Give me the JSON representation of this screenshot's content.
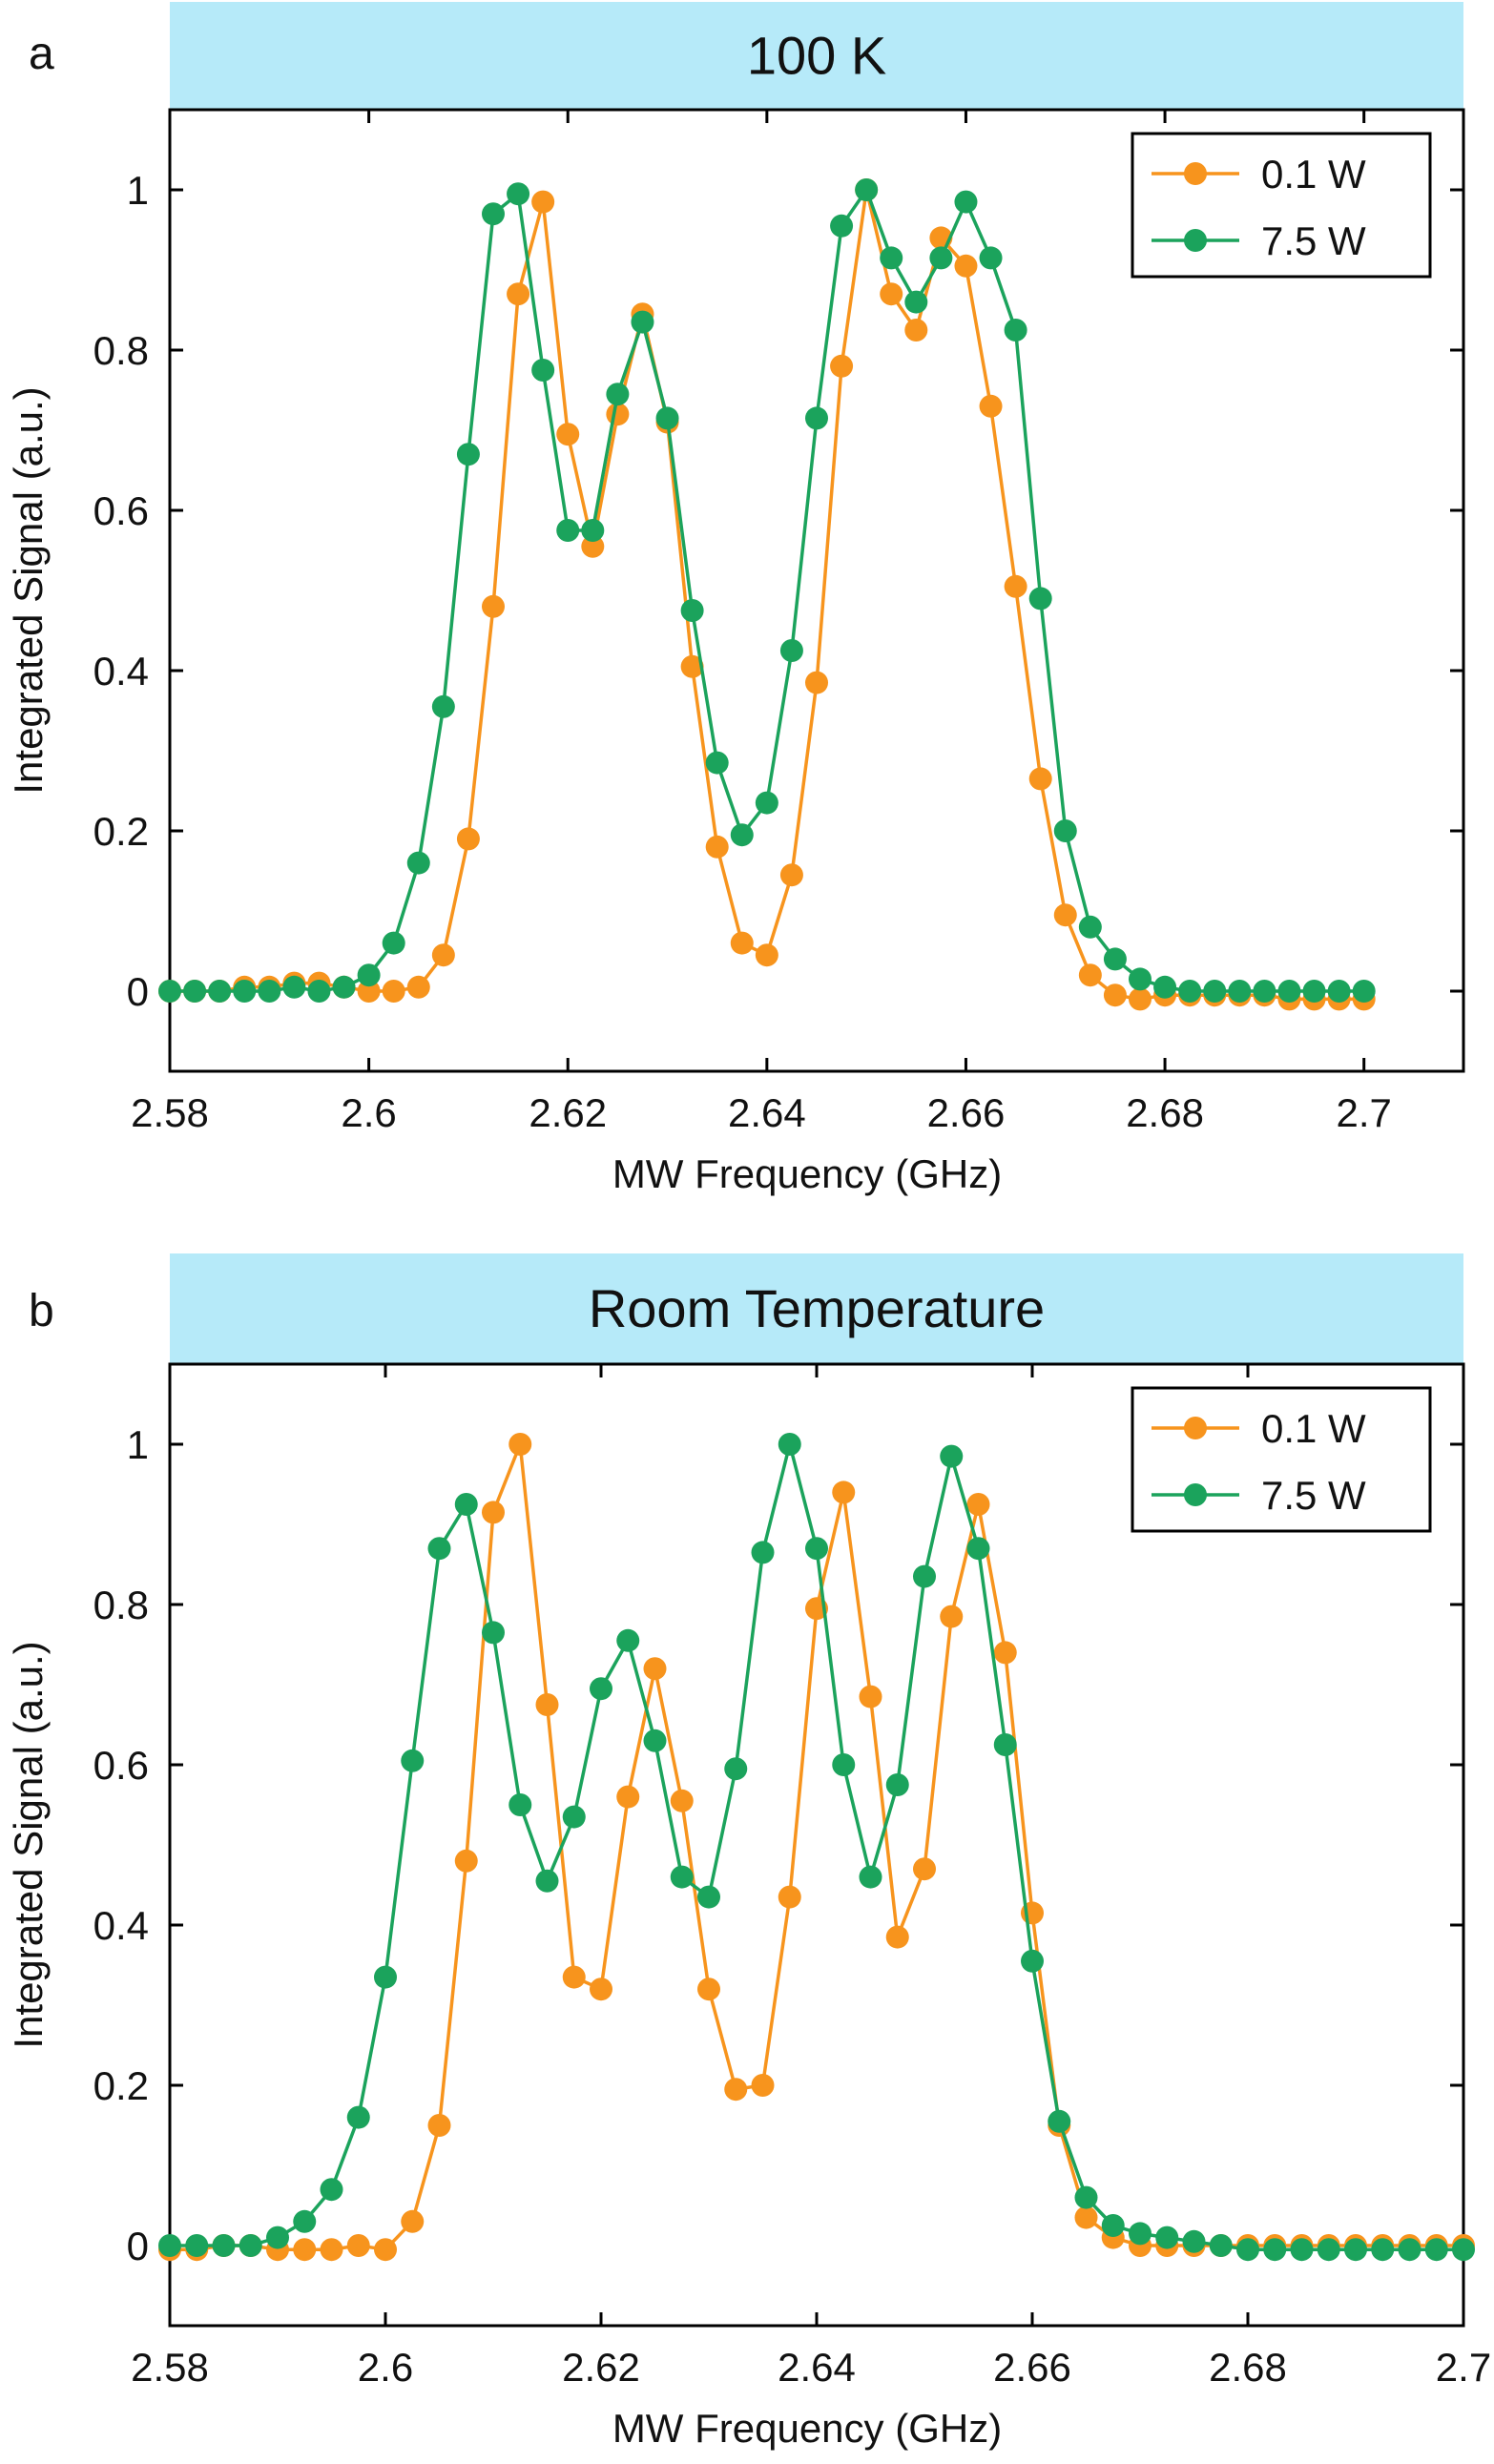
{
  "chart_data": [
    {
      "type": "line",
      "panel_label": "a",
      "title": "100 K",
      "xlabel": "MW Frequency (GHz)",
      "ylabel": "Integrated Signal (a.u.)",
      "xlim": [
        2.58,
        2.71
      ],
      "ylim": [
        -0.1,
        1.1
      ],
      "xticks": [
        2.58,
        2.6,
        2.62,
        2.64,
        2.66,
        2.68,
        2.7
      ],
      "xtick_labels": [
        "2.58",
        "2.6",
        "2.62",
        "2.64",
        "2.66",
        "2.68",
        "2.7"
      ],
      "yticks": [
        0,
        0.2,
        0.4,
        0.6,
        0.8,
        1
      ],
      "ytick_labels": [
        "0",
        "0.2",
        "0.4",
        "0.6",
        "0.8",
        "1"
      ],
      "grid": false,
      "legend_position": "top-right",
      "series": [
        {
          "name": "0.1 W",
          "color": "#F7941D",
          "x": [
            2.58,
            2.5825,
            2.585,
            2.5875,
            2.59,
            2.5925,
            2.595,
            2.5975,
            2.6,
            2.6025,
            2.605,
            2.6075,
            2.61,
            2.6125,
            2.615,
            2.6175,
            2.62,
            2.6225,
            2.625,
            2.6275,
            2.63,
            2.6325,
            2.635,
            2.6375,
            2.64,
            2.6425,
            2.645,
            2.6475,
            2.65,
            2.6525,
            2.655,
            2.6575,
            2.66,
            2.6625,
            2.665,
            2.6675,
            2.67,
            2.6725,
            2.675,
            2.6775,
            2.68,
            2.6825,
            2.685,
            2.6875,
            2.69,
            2.6925,
            2.695,
            2.6975,
            2.7
          ],
          "y": [
            0,
            0,
            0,
            0.005,
            0.005,
            0.01,
            0.01,
            0.005,
            0,
            0,
            0.005,
            0.045,
            0.19,
            0.48,
            0.87,
            0.985,
            0.695,
            0.555,
            0.72,
            0.845,
            0.71,
            0.405,
            0.18,
            0.06,
            0.045,
            0.145,
            0.385,
            0.78,
            1.0,
            0.87,
            0.825,
            0.94,
            0.905,
            0.73,
            0.505,
            0.265,
            0.095,
            0.02,
            -0.005,
            -0.01,
            -0.005,
            -0.005,
            -0.005,
            -0.005,
            -0.005,
            -0.01,
            -0.01,
            -0.01,
            -0.01
          ]
        },
        {
          "name": "7.5 W",
          "color": "#1BA35C",
          "x": [
            2.58,
            2.5825,
            2.585,
            2.5875,
            2.59,
            2.5925,
            2.595,
            2.5975,
            2.6,
            2.6025,
            2.605,
            2.6075,
            2.61,
            2.6125,
            2.615,
            2.6175,
            2.62,
            2.6225,
            2.625,
            2.6275,
            2.63,
            2.6325,
            2.635,
            2.6375,
            2.64,
            2.6425,
            2.645,
            2.6475,
            2.65,
            2.6525,
            2.655,
            2.6575,
            2.66,
            2.6625,
            2.665,
            2.6675,
            2.67,
            2.6725,
            2.675,
            2.6775,
            2.68,
            2.6825,
            2.685,
            2.6875,
            2.69,
            2.6925,
            2.695,
            2.6975,
            2.7
          ],
          "y": [
            0,
            0,
            0,
            0,
            0,
            0.005,
            0,
            0.005,
            0.02,
            0.06,
            0.16,
            0.355,
            0.67,
            0.97,
            0.995,
            0.775,
            0.575,
            0.575,
            0.745,
            0.835,
            0.715,
            0.475,
            0.285,
            0.195,
            0.235,
            0.425,
            0.715,
            0.955,
            1.0,
            0.915,
            0.86,
            0.915,
            0.985,
            0.915,
            0.825,
            0.49,
            0.2,
            0.08,
            0.04,
            0.015,
            0.005,
            0.0,
            0.0,
            0.0,
            0.0,
            0.0,
            0.0,
            0.0,
            0.0
          ]
        }
      ]
    },
    {
      "type": "line",
      "panel_label": "b",
      "title": "Room Temperature",
      "xlabel": "MW Frequency (GHz)",
      "ylabel": "Integrated Signal (a.u.)",
      "xlim": [
        2.58,
        2.7
      ],
      "ylim": [
        -0.1,
        1.1
      ],
      "xticks": [
        2.58,
        2.6,
        2.62,
        2.64,
        2.66,
        2.68,
        2.7
      ],
      "xtick_labels": [
        "2.58",
        "2.6",
        "2.62",
        "2.64",
        "2.66",
        "2.68",
        "2.7"
      ],
      "yticks": [
        0,
        0.2,
        0.4,
        0.6,
        0.8,
        1
      ],
      "ytick_labels": [
        "0",
        "0.2",
        "0.4",
        "0.6",
        "0.8",
        "1"
      ],
      "grid": false,
      "legend_position": "top-right",
      "series": [
        {
          "name": "0.1 W",
          "color": "#F7941D",
          "x": [
            2.58,
            2.5825,
            2.585,
            2.5875,
            2.59,
            2.5925,
            2.595,
            2.5975,
            2.6,
            2.6025,
            2.605,
            2.6075,
            2.61,
            2.6125,
            2.615,
            2.6175,
            2.62,
            2.6225,
            2.625,
            2.6275,
            2.63,
            2.6325,
            2.635,
            2.6375,
            2.64,
            2.6425,
            2.645,
            2.6475,
            2.65,
            2.6525,
            2.655,
            2.6575,
            2.66,
            2.6625,
            2.665,
            2.6675,
            2.67,
            2.6725,
            2.675,
            2.6775,
            2.68,
            2.6825,
            2.685,
            2.6875,
            2.69,
            2.6925,
            2.695,
            2.6975,
            2.7
          ],
          "y": [
            -0.005,
            -0.005,
            0,
            0,
            -0.005,
            -0.005,
            -0.005,
            0,
            -0.005,
            0.03,
            0.15,
            0.48,
            0.915,
            1.0,
            0.675,
            0.335,
            0.32,
            0.56,
            0.72,
            0.555,
            0.32,
            0.195,
            0.2,
            0.435,
            0.795,
            0.94,
            0.685,
            0.385,
            0.47,
            0.785,
            0.925,
            0.74,
            0.415,
            0.15,
            0.035,
            0.01,
            0.0,
            0.0,
            0.0,
            0.0,
            0.0,
            0.0,
            0.0,
            0.0,
            0.0,
            0.0,
            0.0,
            0.0,
            0.0
          ]
        },
        {
          "name": "7.5 W",
          "color": "#1BA35C",
          "x": [
            2.58,
            2.5825,
            2.585,
            2.5875,
            2.59,
            2.5925,
            2.595,
            2.5975,
            2.6,
            2.6025,
            2.605,
            2.6075,
            2.61,
            2.6125,
            2.615,
            2.6175,
            2.62,
            2.6225,
            2.625,
            2.6275,
            2.63,
            2.6325,
            2.635,
            2.6375,
            2.64,
            2.6425,
            2.645,
            2.6475,
            2.65,
            2.6525,
            2.655,
            2.6575,
            2.66,
            2.6625,
            2.665,
            2.6675,
            2.67,
            2.6725,
            2.675,
            2.6775,
            2.68,
            2.6825,
            2.685,
            2.6875,
            2.69,
            2.6925,
            2.695,
            2.6975,
            2.7
          ],
          "y": [
            0,
            0,
            0,
            0,
            0.01,
            0.03,
            0.07,
            0.16,
            0.335,
            0.605,
            0.87,
            0.925,
            0.765,
            0.55,
            0.455,
            0.535,
            0.695,
            0.755,
            0.63,
            0.46,
            0.435,
            0.595,
            0.865,
            1.0,
            0.87,
            0.6,
            0.46,
            0.575,
            0.835,
            0.985,
            0.87,
            0.625,
            0.355,
            0.155,
            0.06,
            0.025,
            0.015,
            0.01,
            0.005,
            0.0,
            -0.005,
            -0.005,
            -0.005,
            -0.005,
            -0.005,
            -0.005,
            -0.005,
            -0.005,
            -0.005
          ]
        }
      ]
    }
  ]
}
